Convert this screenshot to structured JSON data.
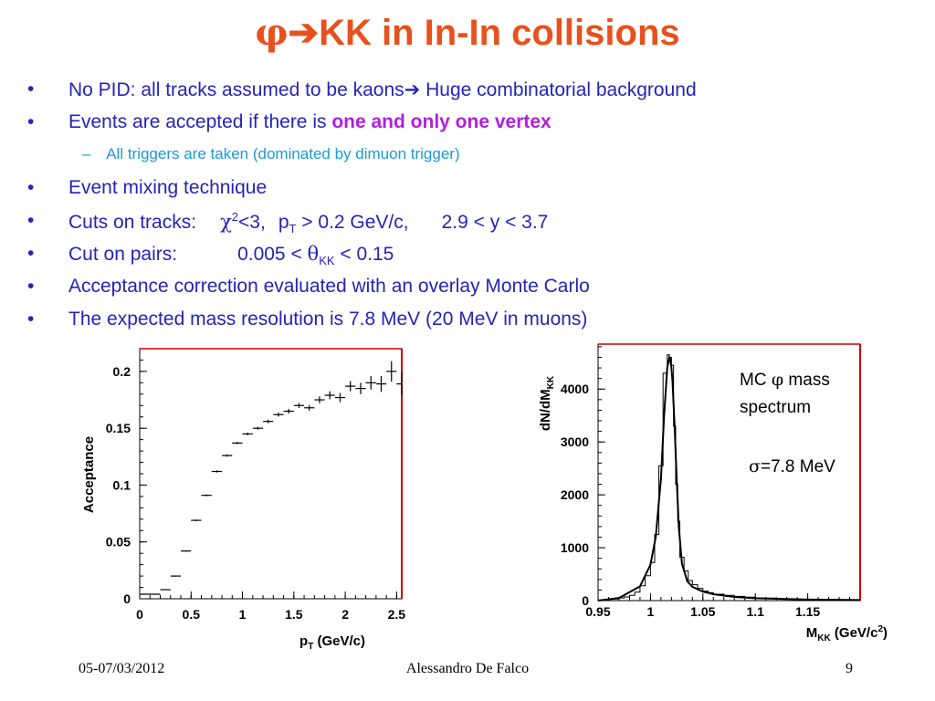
{
  "slide": {
    "title_phi": "φ",
    "title_arrow": "➔",
    "title_rest": "KK in In-In collisions",
    "bullets": [
      {
        "text_a": "No PID: all tracks assumed to be kaons",
        "arrow": "➔",
        "text_b": " Huge combinatorial background"
      },
      {
        "text_a": "Events are accepted if there is ",
        "highlight": "one and only one vertex"
      },
      {
        "sub": "All triggers are taken (dominated by dimuon trigger)"
      },
      {
        "text_a": "Event mixing technique"
      },
      {
        "label": "Cuts on tracks:",
        "chi": "χ",
        "chi_sup": "2",
        "chi_rest": "<3,",
        "pt": "p",
        "pt_sub": "T",
        "pt_rest": " > 0.2 GeV/c,",
        "y_cut": "2.9 < y < 3.7"
      },
      {
        "label": "Cut on pairs:",
        "c1": "0.005 < ",
        "theta": "θ",
        "theta_sub": "KK",
        "c2": " < 0.15"
      },
      {
        "text_a": "Acceptance correction evaluated with an overlay Monte Carlo"
      },
      {
        "text_a": "The expected mass resolution is 7.8 MeV (20 MeV in muons)"
      }
    ],
    "bullet_char": "•",
    "sub_char": "–"
  },
  "footer": {
    "date": "05-07/03/2012",
    "author": "Alessandro De Falco",
    "page": "9"
  },
  "colors": {
    "title": "#e8501c",
    "body": "#2424b8",
    "highlight": "#b01ee0",
    "sub": "#1a9ad6",
    "frame_red": "#cc0000"
  },
  "chart_data": [
    {
      "type": "scatter",
      "title": "",
      "ylabel": "Acceptance",
      "xlabel_main": "p",
      "xlabel_sub": "T",
      "xlabel_rest": " (GeV/c)",
      "xlim": [
        0,
        2.55
      ],
      "ylim": [
        0,
        0.22
      ],
      "xticks": [
        "0",
        "0.5",
        "1",
        "1.5",
        "2",
        "2.5"
      ],
      "yticks": [
        "0",
        "0.05",
        "0.1",
        "0.15",
        "0.2"
      ],
      "x": [
        0.1,
        0.25,
        0.35,
        0.45,
        0.55,
        0.65,
        0.75,
        0.85,
        0.95,
        1.05,
        1.15,
        1.25,
        1.35,
        1.45,
        1.55,
        1.65,
        1.75,
        1.85,
        1.95,
        2.05,
        2.15,
        2.25,
        2.35,
        2.45,
        2.55
      ],
      "y": [
        0.004,
        0.008,
        0.02,
        0.042,
        0.069,
        0.091,
        0.112,
        0.126,
        0.137,
        0.145,
        0.15,
        0.156,
        0.162,
        0.165,
        0.17,
        0.168,
        0.175,
        0.179,
        0.177,
        0.187,
        0.185,
        0.19,
        0.189,
        0.2,
        0.189
      ],
      "xerr": [
        0.1,
        0.05,
        0.05,
        0.05,
        0.05,
        0.05,
        0.05,
        0.05,
        0.05,
        0.05,
        0.05,
        0.05,
        0.05,
        0.05,
        0.05,
        0.05,
        0.05,
        0.05,
        0.05,
        0.05,
        0.05,
        0.05,
        0.05,
        0.05,
        0.05
      ],
      "yerr": [
        0.0002,
        0.0003,
        0.0005,
        0.0006,
        0.0007,
        0.0008,
        0.0009,
        0.001,
        0.001,
        0.0012,
        0.0013,
        0.0015,
        0.0017,
        0.002,
        0.0022,
        0.0025,
        0.003,
        0.0035,
        0.004,
        0.0045,
        0.005,
        0.006,
        0.007,
        0.009,
        0.01
      ]
    },
    {
      "type": "line",
      "title": "",
      "ylabel_main": "dN/dM",
      "ylabel_sub": "KK",
      "xlabel_main": "M",
      "xlabel_sub": "KK",
      "xlabel_rest": " (GeV/c",
      "xlabel_sup": "2",
      "xlabel_end": ")",
      "xlim": [
        0.95,
        1.2
      ],
      "ylim": [
        0,
        4850
      ],
      "xticks": [
        "0.95",
        "1",
        "1.05",
        "1.1",
        "1.15"
      ],
      "yticks": [
        "0",
        "1000",
        "2000",
        "3000",
        "4000"
      ],
      "annotation": {
        "mc": "MC ",
        "phi": "φ",
        "mass": " mass",
        "spectrum": "spectrum",
        "sigma": "σ",
        "sigma_val": "=7.8 MeV"
      },
      "histogram": {
        "bin_edges": [
          0.95,
          0.955,
          0.96,
          0.965,
          0.97,
          0.975,
          0.98,
          0.985,
          0.99,
          0.995,
          1.0,
          1.004,
          1.008,
          1.012,
          1.016,
          1.018,
          1.02,
          1.022,
          1.024,
          1.026,
          1.028,
          1.032,
          1.036,
          1.04,
          1.045,
          1.05,
          1.055,
          1.06,
          1.07,
          1.08,
          1.09,
          1.1,
          1.12,
          1.14,
          1.16,
          1.18,
          1.2
        ],
        "counts": [
          10,
          15,
          25,
          30,
          50,
          70,
          100,
          160,
          280,
          470,
          720,
          1250,
          2550,
          4300,
          4650,
          4600,
          4450,
          3300,
          2200,
          1500,
          820,
          560,
          380,
          300,
          230,
          180,
          150,
          120,
          100,
          80,
          65,
          45,
          35,
          25,
          20,
          15
        ]
      },
      "fit": {
        "x": [
          0.95,
          0.97,
          0.99,
          1.0,
          1.005,
          1.01,
          1.013,
          1.016,
          1.018,
          1.019,
          1.02,
          1.021,
          1.023,
          1.025,
          1.027,
          1.03,
          1.035,
          1.04,
          1.05,
          1.06,
          1.08,
          1.1,
          1.15,
          1.2
        ],
        "y": [
          0,
          50,
          270,
          680,
          1200,
          2300,
          3500,
          4400,
          4600,
          4550,
          4400,
          4150,
          3300,
          2300,
          1400,
          700,
          370,
          260,
          170,
          120,
          70,
          45,
          20,
          10
        ]
      }
    }
  ]
}
